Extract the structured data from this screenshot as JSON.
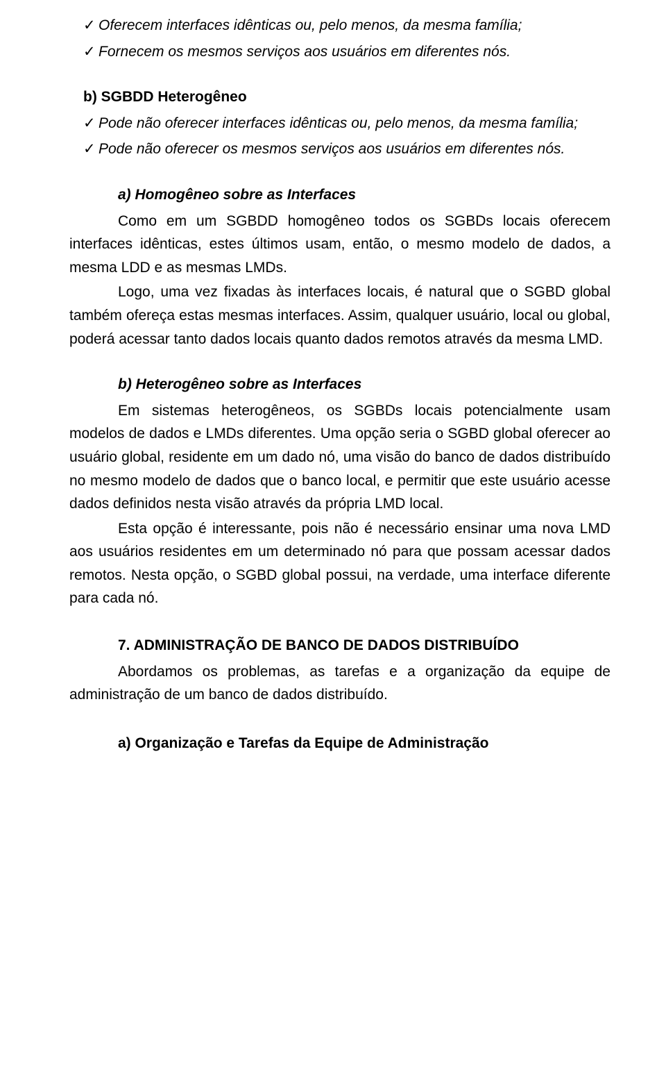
{
  "bullets_top": [
    "Oferecem interfaces idênticas ou, pelo menos, da mesma família;",
    "Fornecem os mesmos serviços aos usuários em diferentes nós."
  ],
  "section_b": {
    "label": "b)   SGBDD Heterogêneo",
    "items": [
      "Pode não oferecer interfaces idênticas ou, pelo menos, da mesma família;",
      "Pode não oferecer os mesmos serviços aos usuários em diferentes nós."
    ]
  },
  "section_a_hom": {
    "title": "a) Homogêneo sobre as Interfaces",
    "p1": "Como em um SGBDD homogêneo todos os SGBDs locais oferecem interfaces idênticas, estes últimos usam, então, o mesmo modelo de dados, a mesma LDD e as mesmas LMDs.",
    "p2": "Logo, uma vez fixadas às interfaces locais, é natural que o SGBD global também ofereça estas mesmas interfaces. Assim, qualquer usuário, local ou global, poderá acessar tanto dados locais quanto dados remotos através da mesma LMD."
  },
  "section_b_het": {
    "title": "b) Heterogêneo sobre as Interfaces",
    "p1": "Em sistemas heterogêneos, os SGBDs locais potencialmente usam modelos de dados e LMDs diferentes. Uma opção seria o SGBD global oferecer ao usuário global, residente em um dado nó, uma visão do banco de dados distribuído no mesmo modelo de dados que o banco local, e permitir que este usuário acesse dados definidos nesta visão através da própria LMD local.",
    "p2": "Esta opção é interessante, pois não é necessário ensinar uma nova LMD aos usuários residentes em um determinado nó para que possam acessar dados remotos. Nesta opção, o SGBD global possui, na verdade, uma interface diferente para cada nó."
  },
  "section_7": {
    "title": "7.      ADMINISTRAÇÃO DE BANCO DE DADOS DISTRIBUÍDO",
    "p1": "Abordamos os problemas, as tarefas e a organização da equipe de administração de um banco de dados distribuído."
  },
  "footer": {
    "title": "a)     Organização e Tarefas da Equipe de Administração"
  },
  "checkmark": "✓"
}
